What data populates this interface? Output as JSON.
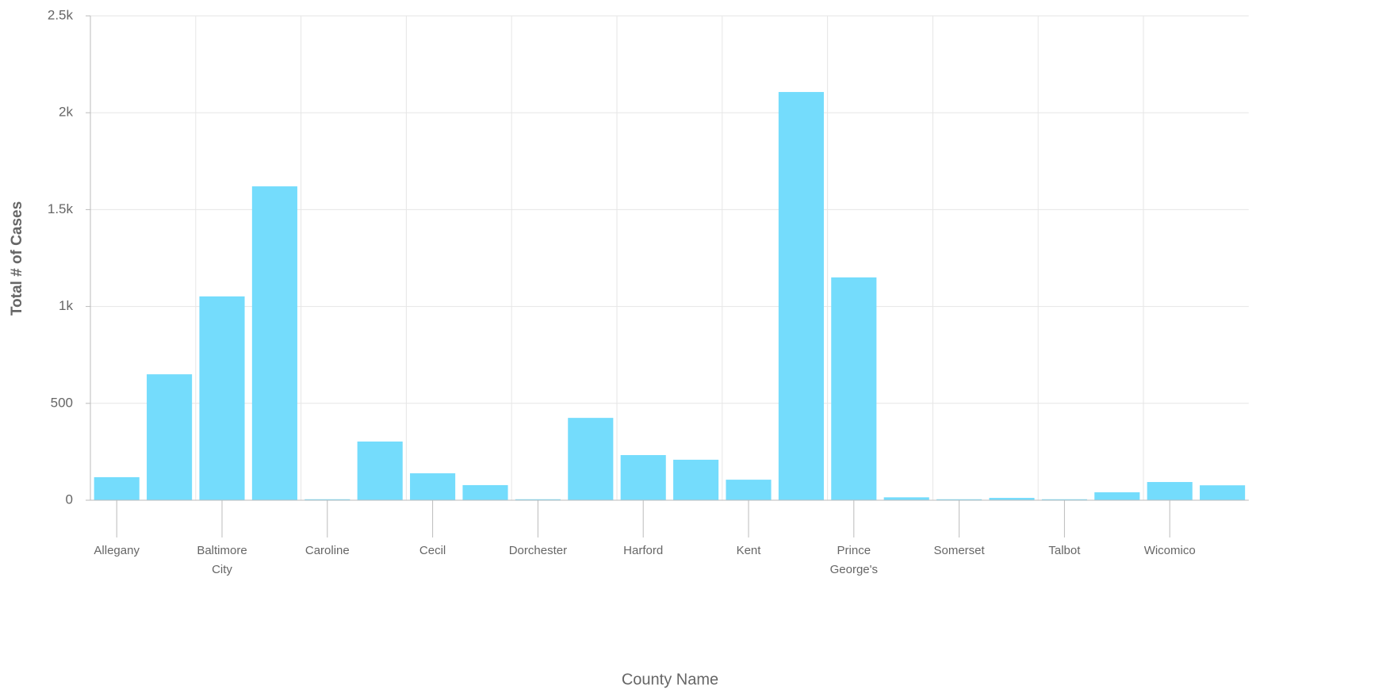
{
  "chart_data": {
    "type": "bar",
    "x_label": "County Name",
    "y_label": "Total # of Cases",
    "categories": [
      "Allegany",
      null,
      "Baltimore City",
      null,
      "Caroline",
      null,
      "Cecil",
      null,
      "Dorchester",
      null,
      "Harford",
      null,
      "Kent",
      null,
      "Prince George's",
      null,
      "Somerset",
      null,
      "Talbot",
      null,
      "Wicomico",
      null
    ],
    "values": [
      119,
      650,
      1052,
      1620,
      5,
      303,
      139,
      78,
      5,
      425,
      233,
      209,
      106,
      2107,
      1150,
      15,
      5,
      12,
      5,
      41,
      94,
      77
    ],
    "color": "#74dcfc",
    "ylim": [
      0,
      2500
    ],
    "yticks": [
      0,
      500,
      {
        "value": 1000,
        "label": "1k"
      },
      {
        "value": 1500,
        "label": "1.5k"
      },
      {
        "value": 2000,
        "label": "2k"
      },
      {
        "value": 2500,
        "label": "2.5k"
      }
    ],
    "grid": true
  }
}
